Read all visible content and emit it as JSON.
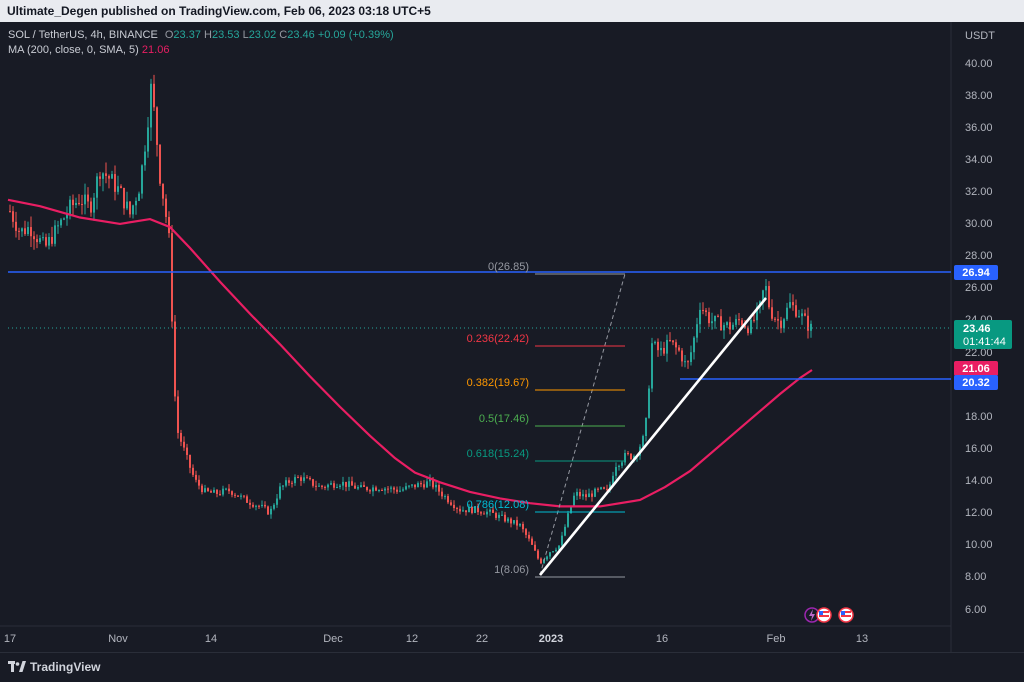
{
  "header": {
    "published_line": "Ultimate_Degen published on TradingView.com, Feb 06, 2023 03:18 UTC+5"
  },
  "legend": {
    "symbol": "SOL / TetherUS, 4h, BINANCE",
    "o_label": "O",
    "o_value": "23.37",
    "h_label": "H",
    "h_value": "23.53",
    "l_label": "L",
    "l_value": "23.02",
    "c_label": "C",
    "c_value": "23.46",
    "change": "+0.09 (+0.39%)",
    "ma_label": "MA (200, close, 0, SMA, 5)",
    "ma_value": "21.06"
  },
  "price_axis": {
    "currency": "USDT",
    "ticks": [
      "40.00",
      "38.00",
      "36.00",
      "34.00",
      "32.00",
      "30.00",
      "28.00",
      "26.00",
      "24.00",
      "22.00",
      "18.00",
      "16.00",
      "14.00",
      "12.00",
      "10.00",
      "8.00",
      "6.00"
    ]
  },
  "time_axis": {
    "ticks": [
      "17",
      "Nov",
      "14",
      "Dec",
      "12",
      "22",
      "2023",
      "16",
      "Feb",
      "13"
    ]
  },
  "price_tags": {
    "resistance": "26.94",
    "last_price": "23.46",
    "countdown": "01:41:44",
    "ma": "21.06",
    "support": "20.32"
  },
  "fib_levels": [
    {
      "label": "0(26.85)",
      "color": "#9598a1"
    },
    {
      "label": "0.236(22.42)",
      "color": "#f23645"
    },
    {
      "label": "0.382(19.67)",
      "color": "#ff9800"
    },
    {
      "label": "0.5(17.46)",
      "color": "#4caf50"
    },
    {
      "label": "0.618(15.24)",
      "color": "#089981"
    },
    {
      "label": "0.786(12.08)",
      "color": "#00bcd4"
    },
    {
      "label": "1(8.06)",
      "color": "#9598a1"
    }
  ],
  "colors": {
    "background": "#181b25",
    "up": "#26a69a",
    "down": "#ef5350",
    "ma": "#e91e63",
    "level_line": "#2962ff",
    "trendline": "#ffffff"
  },
  "footer": {
    "brand": "TradingView"
  },
  "icons": {
    "events": [
      "lightning-event-icon",
      "us-flag-event-icon",
      "us-flag-event-icon"
    ],
    "logo": "tradingview-logo-icon"
  }
}
